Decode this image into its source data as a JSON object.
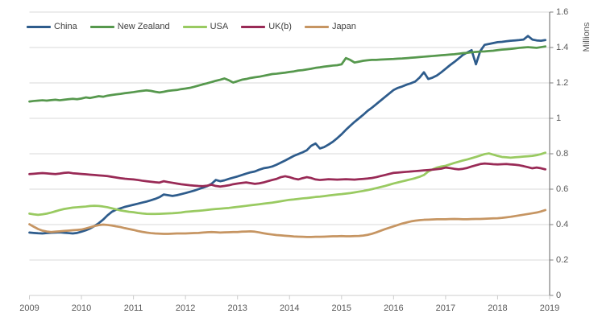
{
  "chart_data": {
    "type": "line",
    "title": "",
    "ylabel": "Millions",
    "xlabel": "",
    "legend_position": "top-left-inside",
    "grid": true,
    "xlim": [
      2009,
      2019
    ],
    "ylim": [
      0,
      1.6
    ],
    "x_ticks": [
      2009,
      2010,
      2011,
      2012,
      2013,
      2014,
      2015,
      2016,
      2017,
      2018,
      2019
    ],
    "y_ticks": [
      0,
      0.2,
      0.4,
      0.6,
      0.8,
      1,
      1.2,
      1.4,
      1.6
    ],
    "y_tick_labels": [
      "0",
      "0.2",
      "0.4",
      "0.6",
      "0.8",
      "1",
      "1.2",
      "1.4",
      "1.6"
    ],
    "x_unit": "monthly from 2009-01 to 2018-12",
    "colors": {
      "grid": "#d9d9d9",
      "x_axis": "#cccccc",
      "y_axis": "#7f7f7f",
      "tick_text": "#595959",
      "legend_text": "#404040"
    },
    "series": [
      {
        "name": "China",
        "color": "#2e5c8c",
        "values": [
          0.355,
          0.353,
          0.351,
          0.35,
          0.352,
          0.354,
          0.355,
          0.356,
          0.354,
          0.352,
          0.35,
          0.353,
          0.36,
          0.368,
          0.378,
          0.392,
          0.408,
          0.428,
          0.452,
          0.472,
          0.484,
          0.492,
          0.5,
          0.506,
          0.512,
          0.518,
          0.524,
          0.53,
          0.537,
          0.545,
          0.555,
          0.57,
          0.566,
          0.562,
          0.566,
          0.572,
          0.578,
          0.585,
          0.592,
          0.6,
          0.608,
          0.617,
          0.63,
          0.652,
          0.645,
          0.65,
          0.658,
          0.665,
          0.672,
          0.68,
          0.688,
          0.695,
          0.7,
          0.71,
          0.718,
          0.722,
          0.728,
          0.738,
          0.75,
          0.762,
          0.775,
          0.788,
          0.798,
          0.808,
          0.82,
          0.845,
          0.858,
          0.83,
          0.838,
          0.852,
          0.868,
          0.888,
          0.91,
          0.935,
          0.958,
          0.98,
          1.0,
          1.02,
          1.042,
          1.06,
          1.08,
          1.1,
          1.12,
          1.14,
          1.16,
          1.172,
          1.18,
          1.19,
          1.198,
          1.208,
          1.23,
          1.26,
          1.222,
          1.23,
          1.242,
          1.26,
          1.28,
          1.3,
          1.318,
          1.338,
          1.358,
          1.372,
          1.385,
          1.305,
          1.38,
          1.415,
          1.42,
          1.425,
          1.43,
          1.432,
          1.435,
          1.438,
          1.44,
          1.442,
          1.445,
          1.465,
          1.445,
          1.44,
          1.438,
          1.442
        ]
      },
      {
        "name": "New Zealand",
        "color": "#56984d",
        "values": [
          1.095,
          1.098,
          1.1,
          1.102,
          1.1,
          1.103,
          1.105,
          1.102,
          1.105,
          1.108,
          1.11,
          1.108,
          1.112,
          1.118,
          1.115,
          1.12,
          1.125,
          1.122,
          1.128,
          1.132,
          1.135,
          1.138,
          1.142,
          1.145,
          1.148,
          1.152,
          1.155,
          1.158,
          1.155,
          1.15,
          1.146,
          1.15,
          1.155,
          1.158,
          1.16,
          1.165,
          1.168,
          1.172,
          1.178,
          1.185,
          1.192,
          1.198,
          1.205,
          1.212,
          1.218,
          1.225,
          1.215,
          1.202,
          1.21,
          1.218,
          1.222,
          1.228,
          1.232,
          1.235,
          1.24,
          1.245,
          1.25,
          1.252,
          1.255,
          1.258,
          1.262,
          1.265,
          1.27,
          1.272,
          1.276,
          1.28,
          1.285,
          1.288,
          1.292,
          1.295,
          1.298,
          1.3,
          1.305,
          1.34,
          1.33,
          1.315,
          1.32,
          1.325,
          1.328,
          1.33,
          1.33,
          1.332,
          1.333,
          1.334,
          1.335,
          1.337,
          1.338,
          1.34,
          1.342,
          1.344,
          1.346,
          1.348,
          1.35,
          1.352,
          1.354,
          1.356,
          1.358,
          1.36,
          1.362,
          1.365,
          1.368,
          1.37,
          1.373,
          1.375,
          1.377,
          1.378,
          1.38,
          1.382,
          1.385,
          1.388,
          1.39,
          1.392,
          1.395,
          1.398,
          1.4,
          1.402,
          1.4,
          1.398,
          1.402,
          1.406
        ]
      },
      {
        "name": "USA",
        "color": "#99ca61",
        "values": [
          0.462,
          0.458,
          0.455,
          0.458,
          0.462,
          0.468,
          0.475,
          0.482,
          0.488,
          0.492,
          0.496,
          0.498,
          0.5,
          0.502,
          0.505,
          0.506,
          0.505,
          0.502,
          0.498,
          0.492,
          0.486,
          0.48,
          0.476,
          0.472,
          0.47,
          0.466,
          0.463,
          0.461,
          0.46,
          0.46,
          0.461,
          0.462,
          0.463,
          0.464,
          0.466,
          0.468,
          0.472,
          0.474,
          0.476,
          0.478,
          0.48,
          0.483,
          0.486,
          0.488,
          0.49,
          0.492,
          0.494,
          0.497,
          0.5,
          0.503,
          0.506,
          0.509,
          0.512,
          0.515,
          0.518,
          0.521,
          0.524,
          0.528,
          0.532,
          0.536,
          0.54,
          0.542,
          0.545,
          0.548,
          0.55,
          0.553,
          0.556,
          0.558,
          0.561,
          0.564,
          0.567,
          0.57,
          0.572,
          0.575,
          0.578,
          0.582,
          0.586,
          0.59,
          0.595,
          0.6,
          0.606,
          0.612,
          0.618,
          0.625,
          0.632,
          0.638,
          0.644,
          0.65,
          0.656,
          0.662,
          0.67,
          0.68,
          0.7,
          0.712,
          0.722,
          0.728,
          0.732,
          0.74,
          0.748,
          0.755,
          0.762,
          0.768,
          0.775,
          0.782,
          0.79,
          0.798,
          0.802,
          0.795,
          0.788,
          0.782,
          0.78,
          0.778,
          0.78,
          0.782,
          0.784,
          0.786,
          0.788,
          0.792,
          0.798,
          0.806
        ]
      },
      {
        "name": "UK(b)",
        "color": "#992a56",
        "values": [
          0.685,
          0.687,
          0.689,
          0.691,
          0.689,
          0.687,
          0.685,
          0.688,
          0.692,
          0.694,
          0.69,
          0.688,
          0.686,
          0.684,
          0.682,
          0.68,
          0.678,
          0.676,
          0.674,
          0.67,
          0.666,
          0.662,
          0.659,
          0.657,
          0.655,
          0.652,
          0.648,
          0.645,
          0.642,
          0.639,
          0.637,
          0.645,
          0.64,
          0.636,
          0.632,
          0.628,
          0.625,
          0.622,
          0.62,
          0.618,
          0.617,
          0.62,
          0.625,
          0.618,
          0.615,
          0.618,
          0.622,
          0.628,
          0.632,
          0.635,
          0.638,
          0.634,
          0.63,
          0.633,
          0.638,
          0.645,
          0.652,
          0.658,
          0.668,
          0.673,
          0.668,
          0.66,
          0.655,
          0.662,
          0.668,
          0.663,
          0.655,
          0.652,
          0.654,
          0.656,
          0.655,
          0.654,
          0.655,
          0.656,
          0.655,
          0.654,
          0.656,
          0.658,
          0.66,
          0.663,
          0.668,
          0.674,
          0.68,
          0.686,
          0.692,
          0.694,
          0.696,
          0.698,
          0.7,
          0.702,
          0.704,
          0.706,
          0.708,
          0.71,
          0.713,
          0.716,
          0.722,
          0.719,
          0.715,
          0.712,
          0.715,
          0.72,
          0.728,
          0.735,
          0.742,
          0.745,
          0.743,
          0.741,
          0.74,
          0.741,
          0.742,
          0.74,
          0.738,
          0.735,
          0.73,
          0.724,
          0.718,
          0.722,
          0.718,
          0.712
        ]
      },
      {
        "name": "Japan",
        "color": "#c69562",
        "values": [
          0.402,
          0.388,
          0.375,
          0.366,
          0.361,
          0.358,
          0.36,
          0.362,
          0.364,
          0.366,
          0.368,
          0.37,
          0.372,
          0.378,
          0.385,
          0.392,
          0.397,
          0.4,
          0.398,
          0.395,
          0.39,
          0.386,
          0.38,
          0.375,
          0.37,
          0.364,
          0.359,
          0.355,
          0.352,
          0.35,
          0.349,
          0.348,
          0.348,
          0.349,
          0.35,
          0.35,
          0.35,
          0.351,
          0.352,
          0.353,
          0.355,
          0.357,
          0.358,
          0.357,
          0.355,
          0.356,
          0.357,
          0.358,
          0.358,
          0.36,
          0.361,
          0.362,
          0.36,
          0.356,
          0.351,
          0.347,
          0.344,
          0.341,
          0.339,
          0.337,
          0.335,
          0.333,
          0.332,
          0.331,
          0.33,
          0.33,
          0.331,
          0.331,
          0.332,
          0.333,
          0.334,
          0.334,
          0.335,
          0.334,
          0.334,
          0.335,
          0.336,
          0.338,
          0.342,
          0.348,
          0.356,
          0.365,
          0.374,
          0.382,
          0.39,
          0.398,
          0.406,
          0.412,
          0.418,
          0.422,
          0.425,
          0.427,
          0.428,
          0.429,
          0.43,
          0.43,
          0.43,
          0.431,
          0.432,
          0.431,
          0.43,
          0.43,
          0.431,
          0.432,
          0.432,
          0.433,
          0.434,
          0.435,
          0.436,
          0.438,
          0.441,
          0.444,
          0.448,
          0.452,
          0.456,
          0.46,
          0.464,
          0.468,
          0.474,
          0.482
        ]
      }
    ]
  }
}
